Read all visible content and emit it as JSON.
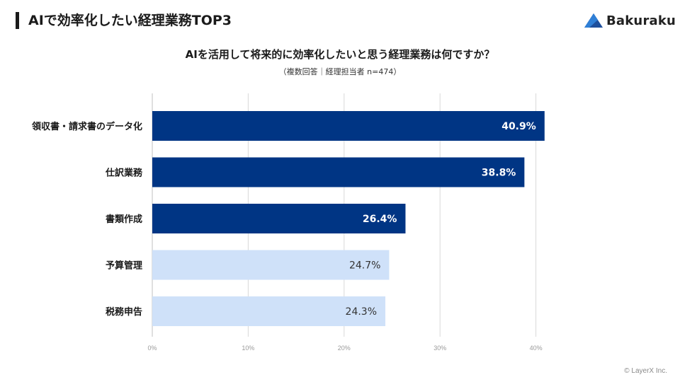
{
  "header": {
    "title": "AIで効率化したい経理業務TOP3",
    "logo_text": "Bakuraku"
  },
  "footer": {
    "copyright": "© LayerX Inc."
  },
  "colors": {
    "highlight": "#003584",
    "normal": "#cfe1f9",
    "grid": "#d9d9d9"
  },
  "chart_data": {
    "type": "bar",
    "orientation": "horizontal",
    "title": "AIを活用して将来的に効率化したいと思う経理業務は何ですか？",
    "subtitle": "（複数回答｜経理担当者 n=474）",
    "categories": [
      "領収書・請求書のデータ化",
      "仕訳業務",
      "書類作成",
      "予算管理",
      "税務申告"
    ],
    "values": [
      40.9,
      38.8,
      26.4,
      24.7,
      24.3
    ],
    "value_labels": [
      "40.9%",
      "38.8%",
      "26.4%",
      "24.7%",
      "24.3%"
    ],
    "highlighted": [
      true,
      true,
      true,
      false,
      false
    ],
    "xlim": [
      0,
      40
    ],
    "xticks": [
      0,
      10,
      20,
      30,
      40
    ],
    "xtick_labels": [
      "0%",
      "10%",
      "20%",
      "30%",
      "40%"
    ],
    "grid": true,
    "xlabel": "",
    "ylabel": ""
  }
}
